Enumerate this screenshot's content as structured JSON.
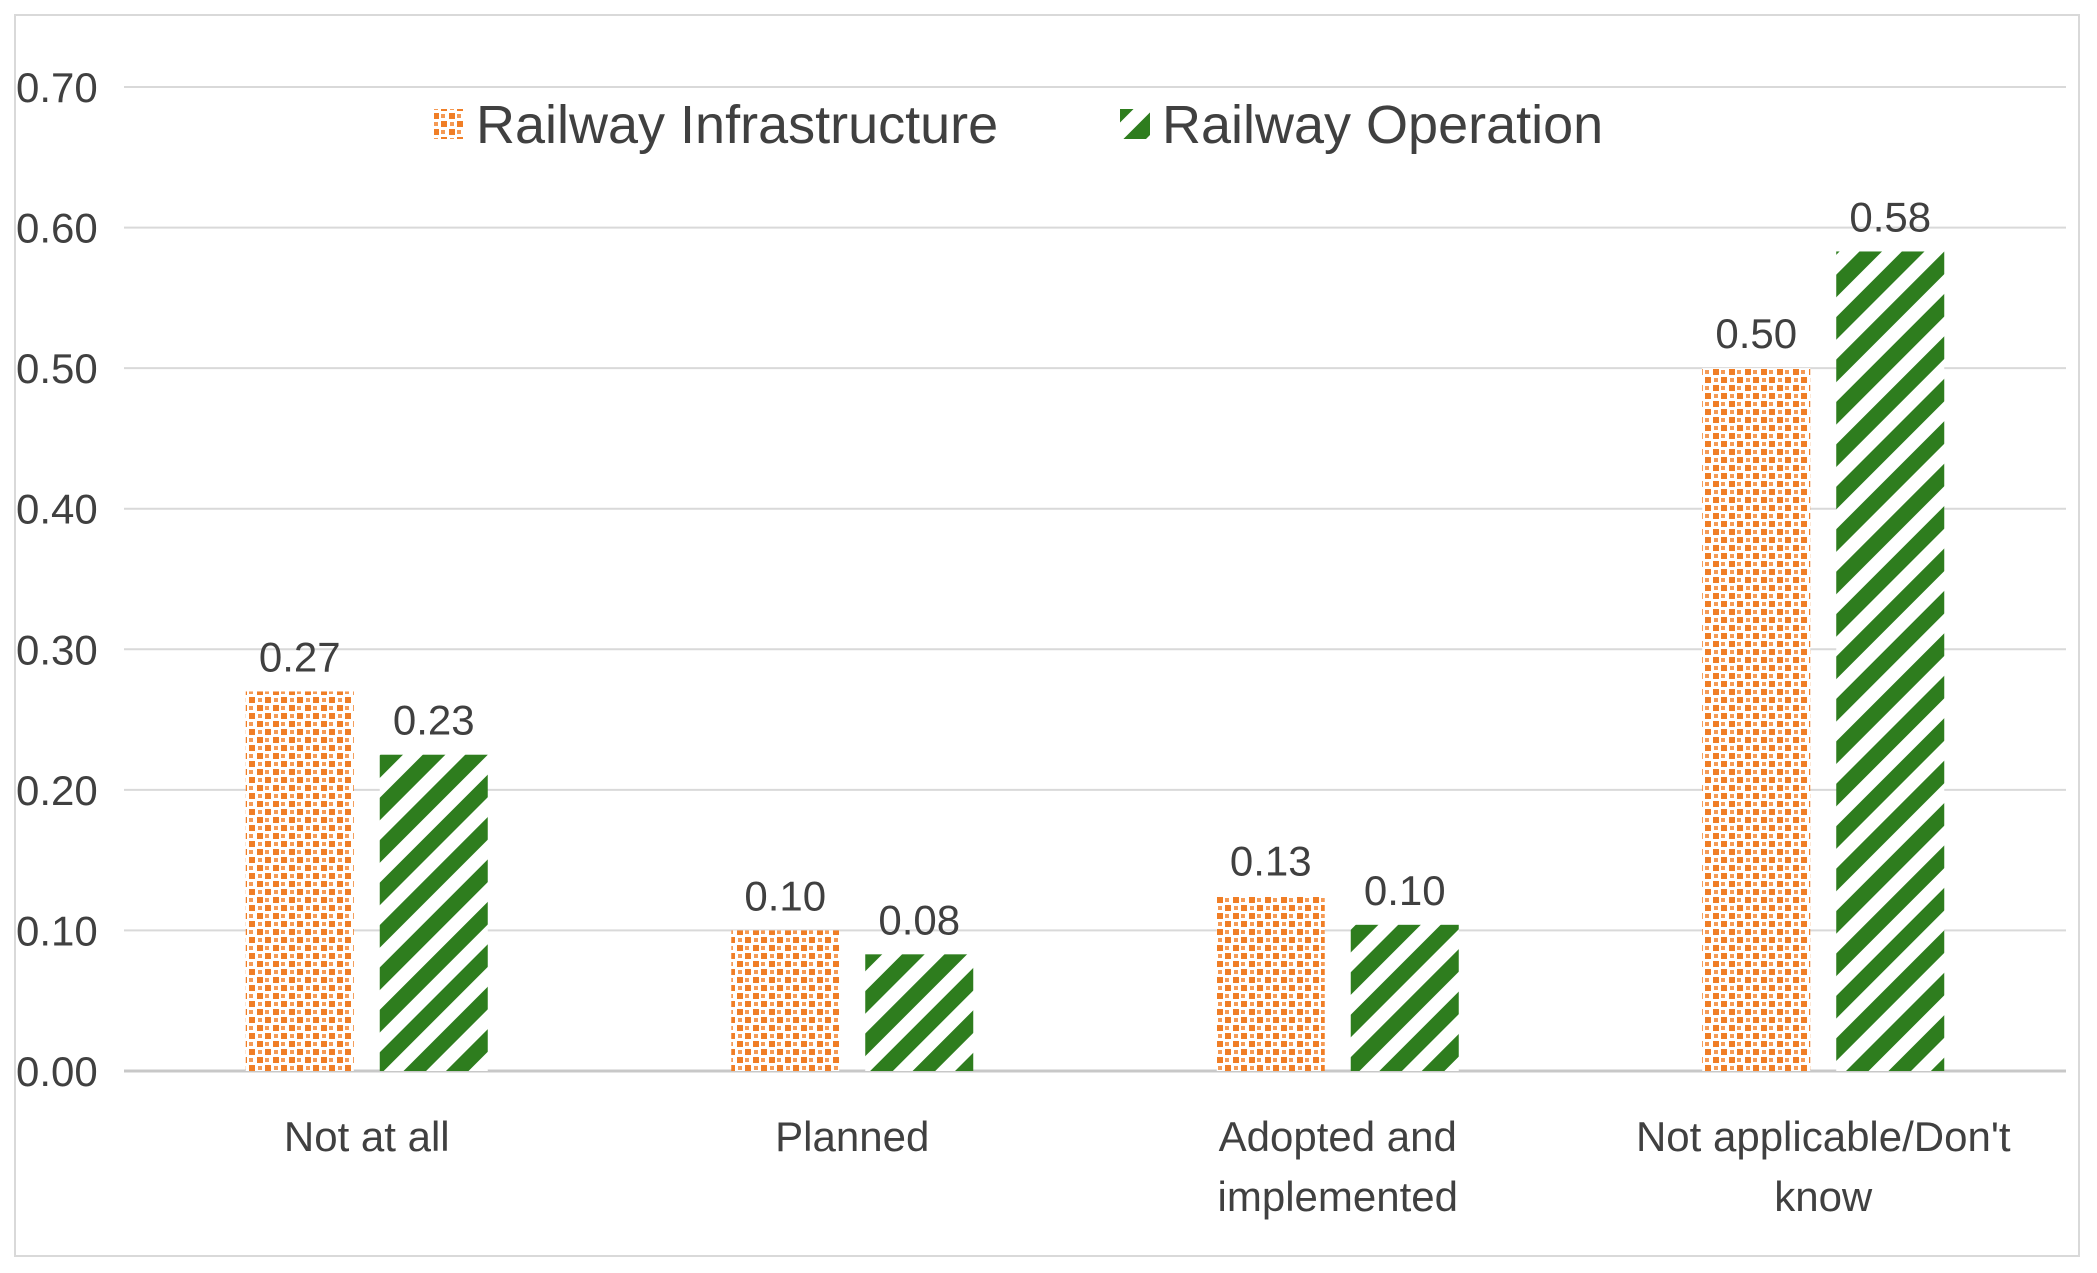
{
  "chart_data": {
    "type": "bar",
    "title": "",
    "xlabel": "",
    "ylabel": "",
    "ylim": [
      0,
      0.7
    ],
    "yticks": [
      "0.00",
      "0.10",
      "0.20",
      "0.30",
      "0.40",
      "0.50",
      "0.60",
      "0.70"
    ],
    "grid": true,
    "legend_position": "top",
    "categories": [
      [
        "Not at all"
      ],
      [
        "Planned"
      ],
      [
        "Adopted and",
        "implemented"
      ],
      [
        "Not applicable/Don't",
        "know"
      ]
    ],
    "series": [
      {
        "name": "Railway Infrastructure",
        "color": "#f07e26",
        "pattern": "dots",
        "values": [
          0.27,
          0.1,
          0.125,
          0.5
        ],
        "labels": [
          "0.27",
          "0.10",
          "0.13",
          "0.50"
        ]
      },
      {
        "name": "Railway Operation",
        "color": "#2e7d1e",
        "pattern": "diagonal-stripes",
        "values": [
          0.225,
          0.083,
          0.104,
          0.583
        ],
        "labels": [
          "0.23",
          "0.08",
          "0.10",
          "0.58"
        ]
      }
    ]
  }
}
